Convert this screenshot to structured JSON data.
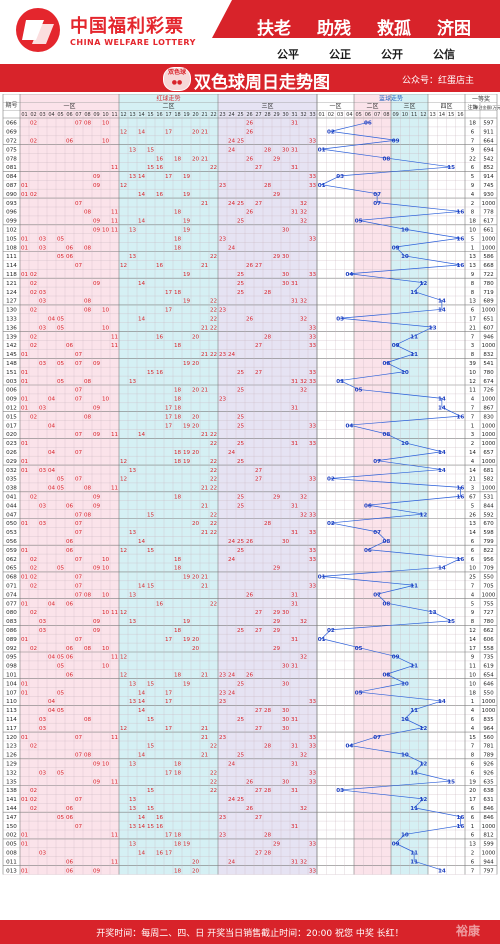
{
  "header": {
    "logo_cn": "中国福利彩票",
    "logo_en": "CHINA WELFARE LOTTERY",
    "slogans": [
      "扶老",
      "助残",
      "救孤",
      "济困"
    ],
    "values": [
      "公平",
      "公正",
      "公开",
      "公信"
    ],
    "colors": {
      "brand": "#e4262d",
      "accent": "#d8232a"
    }
  },
  "title_bar": {
    "badge": "双色球",
    "title": "双色球周日走势图",
    "account": "公众号：红蛋店主"
  },
  "chart_data": {
    "type": "table",
    "header": {
      "issue": "期号",
      "red_group": "红球走势",
      "blue_group": "蓝球走势",
      "zones": [
        "一区",
        "二区",
        "三区"
      ],
      "blue_zones": [
        "一区",
        "二区",
        "三区",
        "四区"
      ],
      "prize": "一等奖",
      "prize_cols": [
        "注数",
        "单注金额(万元)"
      ]
    },
    "red_numbers": [
      "01",
      "02",
      "03",
      "04",
      "05",
      "06",
      "07",
      "08",
      "09",
      "10",
      "11",
      "12",
      "13",
      "14",
      "15",
      "16",
      "17",
      "18",
      "19",
      "20",
      "21",
      "22",
      "23",
      "24",
      "25",
      "26",
      "27",
      "28",
      "29",
      "30",
      "31",
      "32",
      "33"
    ],
    "blue_numbers": [
      "01",
      "02",
      "03",
      "04",
      "05",
      "06",
      "07",
      "08",
      "09",
      "10",
      "11",
      "12",
      "13",
      "14",
      "15",
      "16"
    ],
    "rows": [
      {
        "issue": "066",
        "red": [
          2,
          7,
          8,
          10,
          26,
          31
        ],
        "blue": 6,
        "count": "18",
        "amount": "597"
      },
      {
        "issue": "069",
        "red": [
          12,
          14,
          17,
          20,
          21,
          26
        ],
        "blue": 2,
        "count": "6",
        "amount": "911"
      },
      {
        "issue": "072",
        "red": [
          2,
          6,
          10,
          24,
          25,
          33
        ],
        "blue": 9,
        "count": "7",
        "amount": "664"
      },
      {
        "issue": "075",
        "red": [
          13,
          15,
          24,
          28,
          30,
          31
        ],
        "blue": 1,
        "count": "9",
        "amount": "694"
      },
      {
        "issue": "078",
        "red": [
          16,
          18,
          20,
          21,
          26,
          29
        ],
        "blue": 8,
        "count": "22",
        "amount": "542"
      },
      {
        "issue": "081",
        "red": [
          11,
          15,
          16,
          22,
          27,
          31
        ],
        "blue": 15,
        "count": "6",
        "amount": "852"
      },
      {
        "issue": "084",
        "red": [
          9,
          13,
          14,
          17,
          19,
          33
        ],
        "blue": 3,
        "count": "5",
        "amount": "914"
      },
      {
        "issue": "087",
        "red": [
          1,
          9,
          12,
          23,
          28,
          33
        ],
        "blue": 1,
        "count": "9",
        "amount": "745"
      },
      {
        "issue": "090",
        "red": [
          1,
          2,
          14,
          16,
          19,
          29
        ],
        "blue": 7,
        "count": "4",
        "amount": "930"
      },
      {
        "issue": "093",
        "red": [
          7,
          21,
          24,
          25,
          27,
          32
        ],
        "blue": 7,
        "count": "2",
        "amount": "1000"
      },
      {
        "issue": "096",
        "red": [
          8,
          11,
          18,
          26,
          31,
          32
        ],
        "blue": 16,
        "count": "8",
        "amount": "778"
      },
      {
        "issue": "099",
        "red": [
          9,
          11,
          14,
          19,
          25,
          32
        ],
        "blue": 5,
        "count": "18",
        "amount": "617"
      },
      {
        "issue": "102",
        "red": [
          9,
          10,
          11,
          13,
          19,
          30
        ],
        "blue": 10,
        "count": "10",
        "amount": "661"
      },
      {
        "issue": "105",
        "red": [
          1,
          3,
          5,
          18,
          23,
          33
        ],
        "blue": 16,
        "count": "5",
        "amount": "1000"
      },
      {
        "issue": "108",
        "red": [
          1,
          3,
          6,
          8,
          18,
          24
        ],
        "blue": 9,
        "count": "1",
        "amount": "1000"
      },
      {
        "issue": "111",
        "red": [
          5,
          6,
          13,
          22,
          29,
          30
        ],
        "blue": 10,
        "count": "13",
        "amount": "586"
      },
      {
        "issue": "114",
        "red": [
          7,
          12,
          16,
          21,
          26,
          27
        ],
        "blue": 16,
        "count": "13",
        "amount": "668"
      },
      {
        "issue": "118",
        "red": [
          1,
          2,
          19,
          25,
          30,
          33
        ],
        "blue": 4,
        "count": "9",
        "amount": "722"
      },
      {
        "issue": "121",
        "red": [
          2,
          9,
          14,
          25,
          30,
          31
        ],
        "blue": 12,
        "count": "8",
        "amount": "780"
      },
      {
        "issue": "124",
        "red": [
          2,
          3,
          17,
          18,
          25,
          28
        ],
        "blue": 11,
        "count": "8",
        "amount": "719"
      },
      {
        "issue": "127",
        "red": [
          3,
          8,
          19,
          22,
          31,
          32
        ],
        "blue": 14,
        "count": "13",
        "amount": "689"
      },
      {
        "issue": "130",
        "red": [
          2,
          8,
          10,
          17,
          22,
          23
        ],
        "blue": 14,
        "count": "6",
        "amount": "1000"
      },
      {
        "issue": "133",
        "red": [
          4,
          5,
          14,
          22,
          26,
          32
        ],
        "blue": 3,
        "count": "17",
        "amount": "651"
      },
      {
        "issue": "136",
        "red": [
          3,
          5,
          10,
          21,
          22,
          33
        ],
        "blue": 13,
        "count": "21",
        "amount": "607"
      },
      {
        "issue": "139",
        "red": [
          2,
          11,
          16,
          20,
          28,
          33
        ],
        "blue": 11,
        "count": "7",
        "amount": "946"
      },
      {
        "issue": "142",
        "red": [
          2,
          6,
          11,
          18,
          27,
          33
        ],
        "blue": 9,
        "count": "3",
        "amount": "1000"
      },
      {
        "issue": "145",
        "red": [
          1,
          7,
          21,
          22,
          23,
          24
        ],
        "blue": 11,
        "count": "8",
        "amount": "832"
      },
      {
        "issue": "148",
        "red": [
          3,
          5,
          7,
          9,
          19,
          20
        ],
        "blue": 8,
        "count": "39",
        "amount": "541"
      },
      {
        "issue": "151",
        "red": [
          1,
          15,
          16,
          25,
          27,
          33
        ],
        "blue": 10,
        "count": "10",
        "amount": "780"
      },
      {
        "issue": "003",
        "red": [
          1,
          5,
          8,
          13,
          31,
          32,
          33
        ],
        "blue": 3,
        "count": "12",
        "amount": "674"
      },
      {
        "issue": "006",
        "red": [
          7,
          18,
          20,
          21,
          25,
          32
        ],
        "blue": 5,
        "count": "11",
        "amount": "726"
      },
      {
        "issue": "009",
        "red": [
          1,
          4,
          7,
          10,
          18,
          23
        ],
        "blue": 14,
        "count": "4",
        "amount": "1000"
      },
      {
        "issue": "012",
        "red": [
          1,
          3,
          9,
          17,
          18,
          31
        ],
        "blue": 14,
        "count": "7",
        "amount": "867"
      },
      {
        "issue": "015",
        "red": [
          2,
          8,
          17,
          18,
          20,
          25
        ],
        "blue": 16,
        "count": "7",
        "amount": "830"
      },
      {
        "issue": "017",
        "red": [
          4,
          17,
          19,
          20,
          25,
          33
        ],
        "blue": 4,
        "count": "1",
        "amount": "1000"
      },
      {
        "issue": "020",
        "red": [
          7,
          9,
          11,
          14,
          21,
          22
        ],
        "blue": 8,
        "count": "3",
        "amount": "1000"
      },
      {
        "issue": "023",
        "red": [
          1,
          22,
          25,
          31,
          33
        ],
        "blue": 10,
        "count": "2",
        "amount": "1000"
      },
      {
        "issue": "026",
        "red": [
          4,
          7,
          18,
          19,
          20,
          24
        ],
        "blue": 14,
        "count": "14",
        "amount": "657"
      },
      {
        "issue": "029",
        "red": [
          1,
          12,
          18,
          19,
          22,
          25
        ],
        "blue": 7,
        "count": "4",
        "amount": "1000"
      },
      {
        "issue": "032",
        "red": [
          1,
          3,
          4,
          13,
          22,
          27
        ],
        "blue": 14,
        "count": "14",
        "amount": "681"
      },
      {
        "issue": "035",
        "red": [
          5,
          7,
          12,
          22,
          27,
          33
        ],
        "blue": 2,
        "count": "21",
        "amount": "582"
      },
      {
        "issue": "038",
        "red": [
          4,
          5,
          8,
          11,
          21,
          22
        ],
        "blue": 16,
        "count": "3",
        "amount": "1000"
      },
      {
        "issue": "041",
        "red": [
          2,
          9,
          18,
          25,
          29,
          32
        ],
        "blue": 16,
        "count": "67",
        "amount": "531"
      },
      {
        "issue": "044",
        "red": [
          3,
          6,
          9,
          21,
          25,
          31
        ],
        "blue": 6,
        "count": "5",
        "amount": "844"
      },
      {
        "issue": "047",
        "red": [
          7,
          8,
          15,
          22,
          32,
          33
        ],
        "blue": 12,
        "count": "26",
        "amount": "592"
      },
      {
        "issue": "050",
        "red": [
          1,
          3,
          7,
          20,
          22,
          28
        ],
        "blue": 2,
        "count": "13",
        "amount": "670"
      },
      {
        "issue": "053",
        "red": [
          7,
          13,
          21,
          22,
          31,
          33
        ],
        "blue": 7,
        "count": "14",
        "amount": "598"
      },
      {
        "issue": "056",
        "red": [
          6,
          14,
          24,
          25,
          26,
          30
        ],
        "blue": 8,
        "count": "6",
        "amount": "799"
      },
      {
        "issue": "059",
        "red": [
          1,
          6,
          12,
          15,
          25,
          33
        ],
        "blue": 6,
        "count": "6",
        "amount": "822"
      },
      {
        "issue": "062",
        "red": [
          2,
          7,
          10,
          18,
          24,
          33
        ],
        "blue": 16,
        "count": "6",
        "amount": "956"
      },
      {
        "issue": "065",
        "red": [
          2,
          5,
          9,
          10,
          18,
          29
        ],
        "blue": 14,
        "count": "10",
        "amount": "709"
      },
      {
        "issue": "068",
        "red": [
          1,
          2,
          7,
          19,
          20,
          21
        ],
        "blue": 1,
        "count": "25",
        "amount": "550"
      },
      {
        "issue": "071",
        "red": [
          2,
          7,
          14,
          15,
          21,
          33
        ],
        "blue": 11,
        "count": "7",
        "amount": "705"
      },
      {
        "issue": "074",
        "red": [
          7,
          8,
          10,
          13,
          26,
          31
        ],
        "blue": 7,
        "count": "4",
        "amount": "1000"
      },
      {
        "issue": "077",
        "red": [
          1,
          4,
          6,
          16,
          22,
          31
        ],
        "blue": 8,
        "count": "5",
        "amount": "755"
      },
      {
        "issue": "080",
        "red": [
          2,
          10,
          11,
          12,
          27,
          29,
          30
        ],
        "blue": 13,
        "count": "9",
        "amount": "727"
      },
      {
        "issue": "083",
        "red": [
          3,
          9,
          13,
          19,
          29,
          32
        ],
        "blue": 15,
        "count": "8",
        "amount": "780"
      },
      {
        "issue": "086",
        "red": [
          3,
          9,
          18,
          25,
          27,
          29
        ],
        "blue": 2,
        "count": "12",
        "amount": "662"
      },
      {
        "issue": "089",
        "red": [
          1,
          7,
          17,
          19,
          20,
          31
        ],
        "blue": 1,
        "count": "14",
        "amount": "606"
      },
      {
        "issue": "092",
        "red": [
          2,
          6,
          8,
          10,
          20,
          29
        ],
        "blue": 5,
        "count": "17",
        "amount": "558"
      },
      {
        "issue": "095",
        "red": [
          4,
          5,
          6,
          11,
          12,
          32
        ],
        "blue": 9,
        "count": "9",
        "amount": "735"
      },
      {
        "issue": "098",
        "red": [
          5,
          10,
          30,
          31
        ],
        "blue": 11,
        "count": "11",
        "amount": "619"
      },
      {
        "issue": "101",
        "red": [
          6,
          12,
          18,
          21,
          23,
          24,
          26
        ],
        "blue": 8,
        "count": "10",
        "amount": "654"
      },
      {
        "issue": "104",
        "red": [
          1,
          13,
          15,
          19,
          25,
          30
        ],
        "blue": 10,
        "count": "10",
        "amount": "646"
      },
      {
        "issue": "107",
        "red": [
          1,
          5,
          14,
          17,
          23,
          24
        ],
        "blue": 5,
        "count": "18",
        "amount": "550"
      },
      {
        "issue": "110",
        "red": [
          4,
          13,
          14,
          17,
          23,
          33
        ],
        "blue": 14,
        "count": "1",
        "amount": "1000"
      },
      {
        "issue": "113",
        "red": [
          4,
          5,
          14,
          27,
          28,
          30
        ],
        "blue": 11,
        "count": "4",
        "amount": "1000"
      },
      {
        "issue": "114",
        "red": [
          3,
          8,
          15,
          25,
          30,
          31
        ],
        "blue": 10,
        "count": "6",
        "amount": "835"
      },
      {
        "issue": "117",
        "red": [
          3,
          12,
          17,
          21,
          27,
          30
        ],
        "blue": 12,
        "count": "4",
        "amount": "964"
      },
      {
        "issue": "120",
        "red": [
          1,
          7,
          11,
          21,
          23,
          33
        ],
        "blue": 7,
        "count": "15",
        "amount": "560"
      },
      {
        "issue": "123",
        "red": [
          2,
          15,
          22,
          28,
          31,
          33
        ],
        "blue": 4,
        "count": "7",
        "amount": "781"
      },
      {
        "issue": "126",
        "red": [
          7,
          8,
          14,
          21,
          25,
          32
        ],
        "blue": 10,
        "count": "8",
        "amount": "789"
      },
      {
        "issue": "129",
        "red": [
          9,
          10,
          13,
          18,
          24,
          31
        ],
        "blue": 12,
        "count": "6",
        "amount": "926"
      },
      {
        "issue": "132",
        "red": [
          3,
          5,
          17,
          18,
          22,
          33
        ],
        "blue": 11,
        "count": "6",
        "amount": "926"
      },
      {
        "issue": "135",
        "red": [
          9,
          11,
          22,
          26,
          30,
          33
        ],
        "blue": 15,
        "count": "19",
        "amount": "635"
      },
      {
        "issue": "138",
        "red": [
          2,
          15,
          22,
          27,
          28,
          31
        ],
        "blue": 3,
        "count": "20",
        "amount": "638"
      },
      {
        "issue": "141",
        "red": [
          1,
          2,
          7,
          13,
          24,
          25
        ],
        "blue": 12,
        "count": "17",
        "amount": "631"
      },
      {
        "issue": "144",
        "red": [
          2,
          6,
          13,
          15,
          26,
          32
        ],
        "blue": 11,
        "count": "6",
        "amount": "846"
      },
      {
        "issue": "147",
        "red": [
          5,
          6,
          14,
          16,
          23,
          27
        ],
        "blue": 16,
        "count": "6",
        "amount": "846"
      },
      {
        "issue": "150",
        "red": [
          7,
          13,
          14,
          15,
          16,
          31
        ],
        "blue": 16,
        "count": "1",
        "amount": "1000"
      },
      {
        "issue": "002",
        "red": [
          1,
          11,
          17,
          18,
          23,
          28
        ],
        "blue": 10,
        "count": "6",
        "amount": "812"
      },
      {
        "issue": "005",
        "red": [
          1,
          13,
          18,
          19,
          29,
          33
        ],
        "blue": 9,
        "count": "13",
        "amount": "599"
      },
      {
        "issue": "008",
        "red": [
          3,
          14,
          16,
          17,
          27,
          28
        ],
        "blue": 11,
        "count": "2",
        "amount": "1000"
      },
      {
        "issue": "011",
        "red": [
          6,
          11,
          20,
          24,
          31,
          32
        ],
        "blue": 11,
        "count": "6",
        "amount": "944"
      },
      {
        "issue": "013",
        "red": [
          1,
          6,
          9,
          18,
          20,
          33
        ],
        "blue": 14,
        "count": "7",
        "amount": "797"
      }
    ]
  },
  "footer": {
    "text": "开奖时间：每周二、四、日  开奖当日销售截止时间：20:00  祝您 中奖 长红！",
    "watermark": "裕康"
  }
}
